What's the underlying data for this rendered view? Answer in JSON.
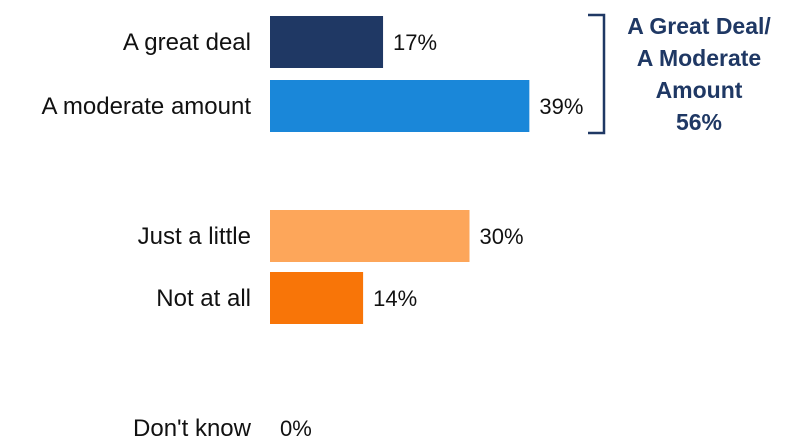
{
  "chart_data": {
    "type": "bar",
    "orientation": "horizontal",
    "categories": [
      "A great deal",
      "A moderate amount",
      "Just a little",
      "Not at all",
      "Don't know"
    ],
    "values": [
      17,
      39,
      30,
      14,
      0
    ],
    "value_labels": [
      "17%",
      "39%",
      "30%",
      "14%",
      "0%"
    ],
    "unit": "%",
    "colors": [
      "#1f3864",
      "#1a87d9",
      "#fda65a",
      "#f87508",
      "#ffffff"
    ],
    "grid": false,
    "legend": "none",
    "annotation": {
      "lines": [
        "A Great Deal/",
        "A Moderate",
        "Amount",
        "56%"
      ],
      "covers": [
        "A great deal",
        "A moderate amount"
      ],
      "color": "#1f3864"
    }
  }
}
